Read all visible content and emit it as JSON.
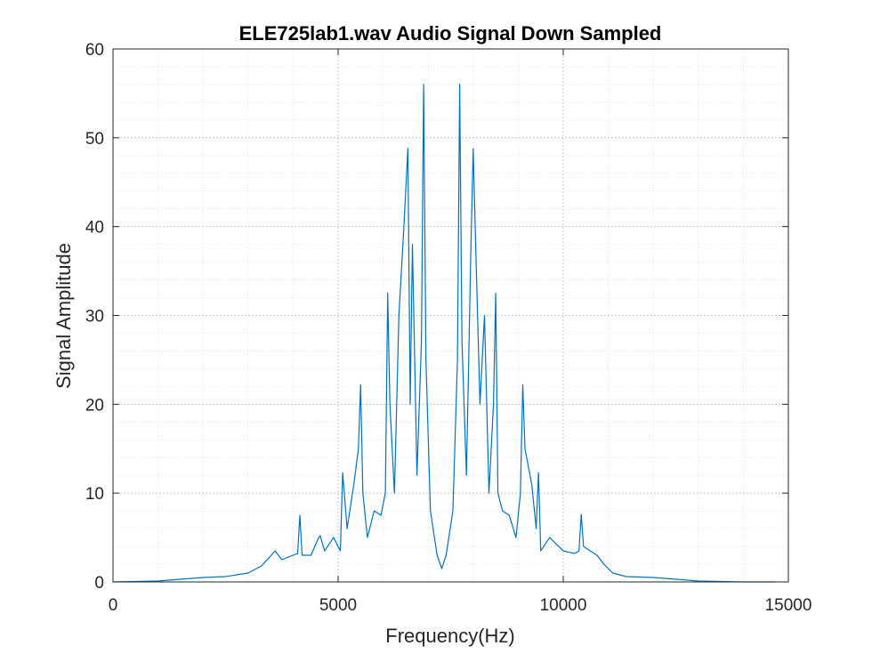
{
  "chart_data": {
    "type": "line",
    "title": "ELE725lab1.wav Audio Signal Down Sampled",
    "xlabel": "Frequency(Hz)",
    "ylabel": "Signal Amplitude",
    "xlim": [
      0,
      15000
    ],
    "ylim": [
      0,
      60
    ],
    "xticks": [
      0,
      5000,
      10000,
      15000
    ],
    "xtick_labels": [
      "0",
      "5000",
      "10000",
      "15000"
    ],
    "yticks": [
      0,
      10,
      20,
      30,
      40,
      50,
      60
    ],
    "ytick_labels": [
      "0",
      "10",
      "20",
      "30",
      "40",
      "50",
      "60"
    ],
    "grid": true,
    "minor_grid": true,
    "line_color": "#0072BD",
    "series": [
      {
        "x": [
          0,
          1000,
          1500,
          2000,
          2500,
          3000,
          3300,
          3600,
          3750,
          3900,
          4100,
          4150,
          4200,
          4400,
          4550,
          4600,
          4700,
          4900,
          5050,
          5100,
          5200,
          5350,
          5450,
          5500,
          5550,
          5650,
          5800,
          5950,
          6050,
          6100,
          6150,
          6250,
          6350,
          6450,
          6550,
          6600,
          6650,
          6750,
          6850,
          6900,
          6950,
          7050,
          7200,
          7300,
          7400,
          7550,
          7650,
          7700,
          7750,
          7850,
          7950,
          8000,
          8050,
          8150,
          8250,
          8350,
          8450,
          8500,
          8550,
          8650,
          8800,
          8950,
          9050,
          9100,
          9150,
          9300,
          9400,
          9450,
          9500,
          9700,
          9900,
          10000,
          10250,
          10350,
          10400,
          10450,
          10600,
          10750,
          10900,
          11100,
          11400,
          12000,
          12500,
          13000,
          13500,
          14000,
          14700
        ],
        "y": [
          0,
          0.1,
          0.3,
          0.5,
          0.6,
          1.0,
          1.8,
          3.5,
          2.5,
          2.8,
          3.2,
          7.5,
          3.0,
          3.0,
          4.8,
          5.2,
          3.5,
          5.0,
          3.5,
          12.3,
          6.0,
          11.0,
          15.0,
          22.2,
          10.0,
          5.0,
          8.0,
          7.5,
          10.0,
          32.5,
          20.0,
          10.0,
          30.0,
          39.0,
          48.8,
          20.0,
          38.0,
          12.0,
          27.0,
          56.0,
          25.0,
          8.0,
          3.0,
          1.5,
          3.0,
          8.0,
          25.0,
          56.0,
          27.0,
          12.0,
          38.0,
          48.8,
          39.0,
          20.0,
          30.0,
          10.0,
          20.0,
          32.5,
          10.0,
          8.0,
          7.5,
          5.0,
          10.0,
          22.2,
          15.0,
          11.0,
          6.0,
          12.3,
          3.5,
          5.0,
          4.0,
          3.5,
          3.2,
          3.5,
          7.6,
          4.0,
          3.5,
          3.0,
          2.0,
          1.0,
          0.6,
          0.5,
          0.3,
          0.1,
          0.05,
          0,
          0
        ]
      }
    ]
  }
}
